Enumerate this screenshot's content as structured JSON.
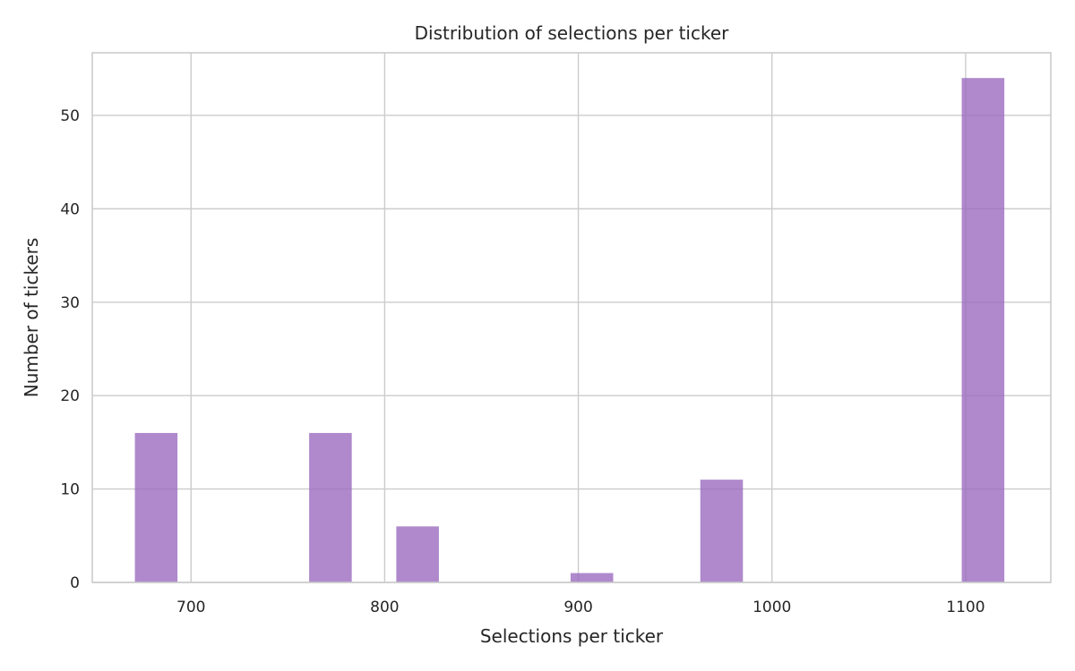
{
  "chart_data": {
    "type": "bar",
    "title": "Distribution of selections per ticker",
    "xlabel": "Selections per ticker",
    "ylabel": "Number of tickers",
    "xlim": [
      649,
      1144
    ],
    "ylim": [
      0,
      56.7
    ],
    "xticks": [
      700,
      800,
      900,
      1000,
      1100
    ],
    "yticks": [
      0,
      10,
      20,
      30,
      40,
      50
    ],
    "grid": true,
    "bar_color": "#9b6bbf",
    "bars": [
      {
        "x0": 671,
        "x1": 693,
        "value": 16
      },
      {
        "x0": 761,
        "x1": 783,
        "value": 16
      },
      {
        "x0": 806,
        "x1": 828,
        "value": 6
      },
      {
        "x0": 896,
        "x1": 918,
        "value": 1
      },
      {
        "x0": 963,
        "x1": 985,
        "value": 11
      },
      {
        "x0": 1098,
        "x1": 1120,
        "value": 54
      }
    ]
  }
}
